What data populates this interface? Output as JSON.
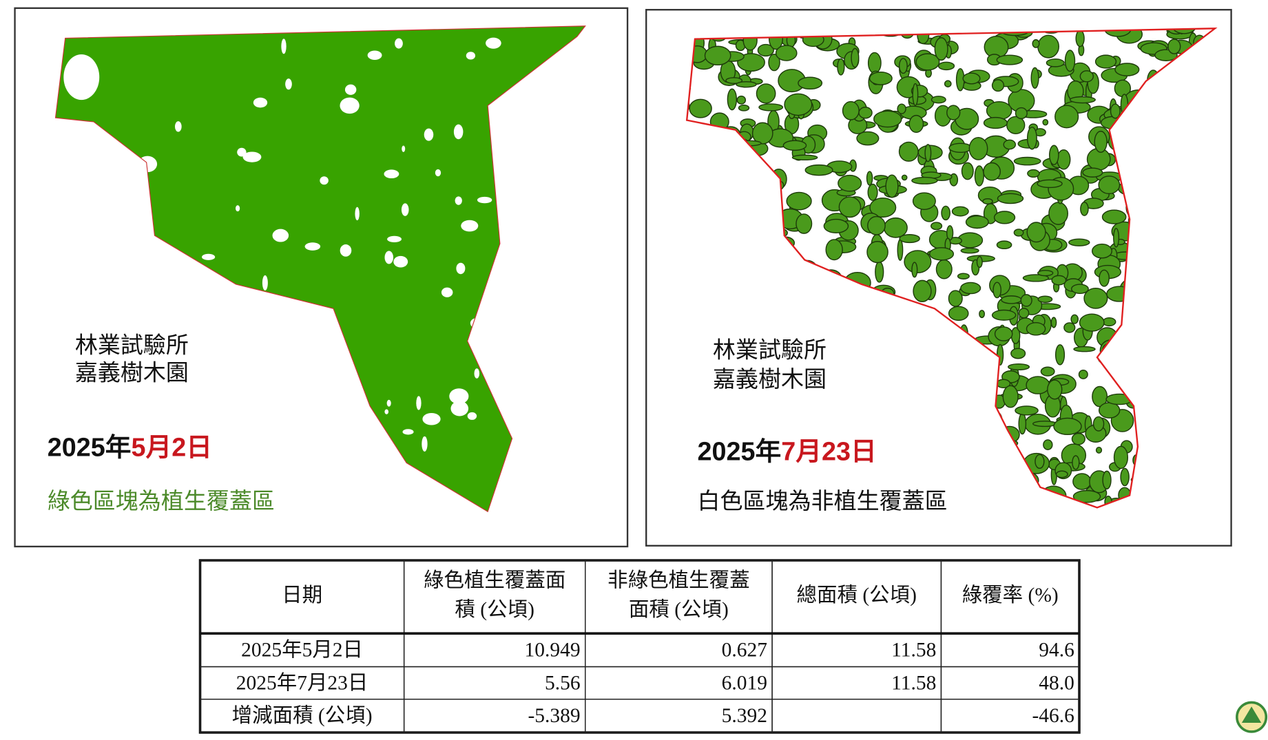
{
  "panels": [
    {
      "org_lines": [
        "林業試驗所",
        "嘉義樹木園"
      ],
      "date_year": "2025年",
      "date_md": "5月2日",
      "caption": "綠色區塊為植生覆蓋區"
    },
    {
      "org_lines": [
        "林業試驗所",
        "嘉義樹木園"
      ],
      "date_year": "2025年",
      "date_md": "7月23日",
      "caption": "白色區塊為非植生覆蓋區"
    }
  ],
  "table": {
    "header": [
      [
        "日期"
      ],
      [
        "綠色植生覆蓋面",
        "積 (公頃)"
      ],
      [
        "非綠色植生覆蓋",
        "面積 (公頃)"
      ],
      [
        "總面積 (公頃)"
      ],
      [
        "綠覆率 (%)"
      ]
    ],
    "rows": [
      [
        "2025年5月2日",
        "10.949",
        "0.627",
        "11.58",
        "94.6"
      ],
      [
        "2025年7月23日",
        "5.56",
        "6.019",
        "11.58",
        "48.0"
      ],
      [
        "增減面積 (公頃)",
        "-5.389",
        "5.392",
        null,
        "-46.6"
      ]
    ]
  }
}
